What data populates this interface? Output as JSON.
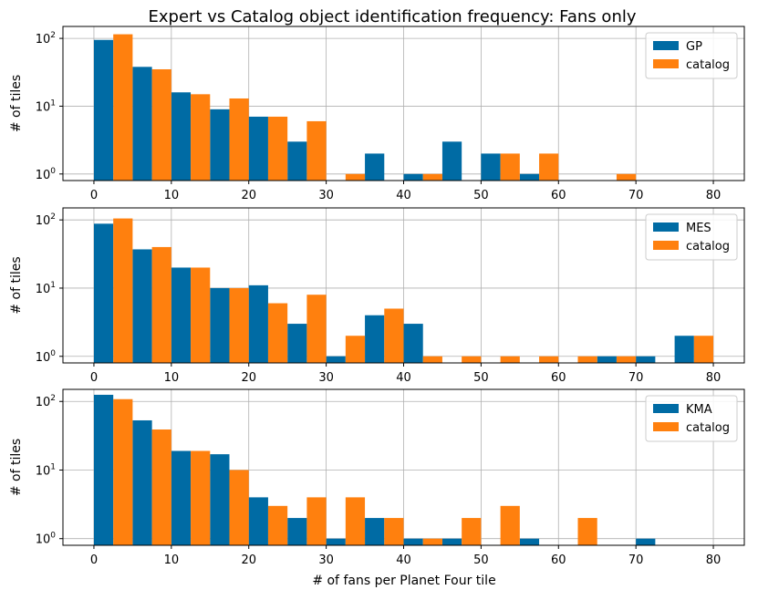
{
  "chart_data": {
    "type": "bar",
    "title": "Expert vs Catalog object identification frequency: Fans only",
    "xlabel": "# of fans per Planet Four tile",
    "ylabel": "# of tiles",
    "xlim": [
      -4,
      84
    ],
    "ylim": [
      0.8,
      150
    ],
    "yscale": "log",
    "grid": true,
    "legend_position": "top-right",
    "x_ticks": [
      {
        "value": 0,
        "label": "0"
      },
      {
        "value": 10,
        "label": "10"
      },
      {
        "value": 20,
        "label": "20"
      },
      {
        "value": 30,
        "label": "30"
      },
      {
        "value": 40,
        "label": "40"
      },
      {
        "value": 50,
        "label": "50"
      },
      {
        "value": 60,
        "label": "60"
      },
      {
        "value": 70,
        "label": "70"
      },
      {
        "value": 80,
        "label": "80"
      }
    ],
    "y_ticks": [
      {
        "value": 1,
        "base": "10",
        "exp": "0"
      },
      {
        "value": 10,
        "base": "10",
        "exp": "1"
      },
      {
        "value": 100,
        "base": "10",
        "exp": "2"
      }
    ],
    "colors": {
      "expert": "#006ba4",
      "catalog": "#ff800e",
      "grid": "#b0b0b0",
      "axes": "#000000"
    },
    "bin_width": 5,
    "bin_starts": [
      0,
      5,
      10,
      15,
      20,
      25,
      30,
      35,
      40,
      45,
      50,
      55,
      60,
      65,
      70,
      75
    ],
    "panels": [
      {
        "series": [
          {
            "name": "GP",
            "role": "expert",
            "values": [
              95,
              38,
              16,
              9,
              7,
              3,
              0,
              2,
              1,
              3,
              2,
              1,
              0,
              0,
              0,
              0
            ]
          },
          {
            "name": "catalog",
            "role": "catalog",
            "values": [
              115,
              35,
              15,
              13,
              7,
              6,
              1,
              0,
              1,
              0,
              2,
              2,
              0,
              1,
              0,
              0
            ]
          }
        ]
      },
      {
        "series": [
          {
            "name": "MES",
            "role": "expert",
            "values": [
              88,
              37,
              20,
              10,
              11,
              3,
              1,
              4,
              3,
              0,
              0,
              0,
              0,
              1,
              1,
              2
            ]
          },
          {
            "name": "catalog",
            "role": "catalog",
            "values": [
              105,
              40,
              20,
              10,
              6,
              8,
              2,
              5,
              1,
              1,
              1,
              1,
              1,
              1,
              0,
              2
            ]
          }
        ]
      },
      {
        "series": [
          {
            "name": "KMA",
            "role": "expert",
            "values": [
              125,
              53,
              19,
              17,
              4,
              2,
              1,
              2,
              1,
              1,
              0,
              1,
              0,
              0,
              1,
              0
            ]
          },
          {
            "name": "catalog",
            "role": "catalog",
            "values": [
              108,
              39,
              19,
              10,
              3,
              4,
              4,
              2,
              1,
              2,
              3,
              0,
              2,
              0,
              0,
              0
            ]
          }
        ]
      }
    ]
  }
}
